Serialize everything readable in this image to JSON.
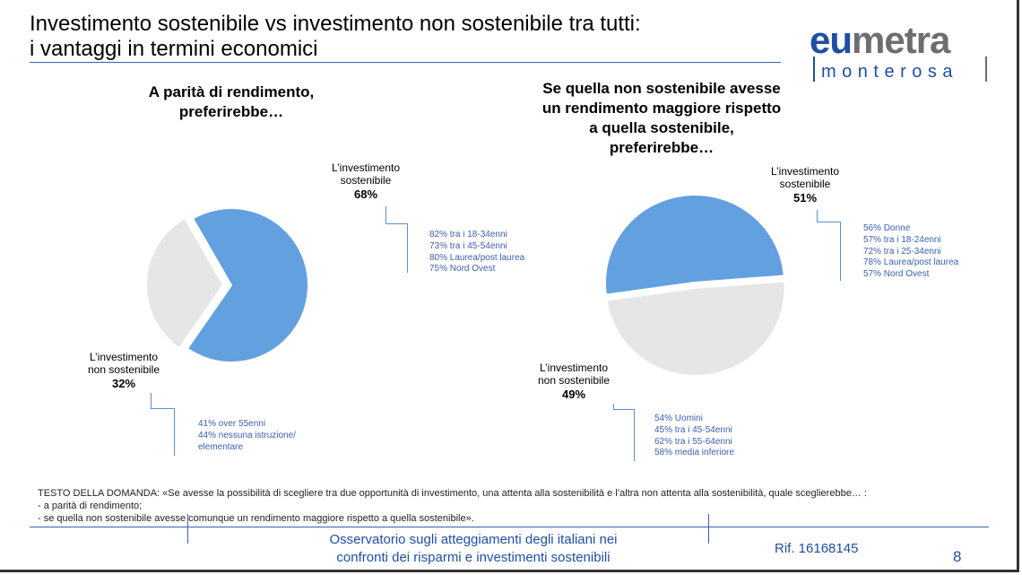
{
  "slide": {
    "title_line1": "Investimento sostenibile vs investimento non sostenibile tra tutti:",
    "title_line2": "i vantaggi in termini economici"
  },
  "logo": {
    "part1": "eu",
    "part2": "metra",
    "subtitle": "monterosa",
    "colors": {
      "blue": "#1f4fa3",
      "grey": "#6e6e6e"
    }
  },
  "chart_data": [
    {
      "type": "pie",
      "title_line1": "A parità di rendimento,",
      "title_line2": "preferirebbe…",
      "slices": [
        {
          "label_line1": "L’investimento",
          "label_line2": "sostenibile",
          "value": 68,
          "value_label": "68%",
          "color": "#62a0e0",
          "notes": [
            "82% tra i 18-34enni",
            "73% tra i 45-54enni",
            "80% Laurea/post laurea",
            "75% Nord Ovest"
          ]
        },
        {
          "label_line1": "L’investimento",
          "label_line2": "non sostenibile",
          "value": 32,
          "value_label": "32%",
          "color": "#e6e6e6",
          "notes": [
            "41% over 55enni",
            "44% nessuna istruzione/",
            "elementare"
          ]
        }
      ]
    },
    {
      "type": "pie",
      "title_line1": "Se quella non sostenibile avesse",
      "title_line2": "un rendimento maggiore rispetto",
      "title_line3": "a quella  sostenibile,",
      "title_line4": "preferirebbe…",
      "slices": [
        {
          "label_line1": "L’investimento",
          "label_line2": "sostenibile",
          "value": 51,
          "value_label": "51%",
          "color": "#62a0e0",
          "notes": [
            "56%  Donne",
            "57% tra i 18-24enni",
            "72% tra i 25-34enni",
            "78% Laurea/post laurea",
            "57% Nord Ovest"
          ]
        },
        {
          "label_line1": "L’investimento",
          "label_line2": "non sostenibile",
          "value": 49,
          "value_label": "49%",
          "color": "#e6e6e6",
          "notes": [
            "54% Uomini",
            "45% tra i 45-54enni",
            "62% tra i 55-64enni",
            "58% media inferiore"
          ]
        }
      ]
    }
  ],
  "question": {
    "line1": "TESTO DELLA DOMANDA: «Se avesse la possibilità di scegliere tra due opportunità di investimento, una attenta alla sostenibilità e l’altra non attenta alla sostenibilità, quale sceglierebbe… :",
    "line2": " - a parità di rendimento;",
    "line3": "- se quella non sostenibile avesse comunque un rendimento maggiore rispetto a quella  sostenibile»."
  },
  "footer": {
    "line1": "Osservatorio sugli atteggiamenti degli italiani nei",
    "line2": "confronti dei risparmi e investimenti sostenibili",
    "ref": "Rif. 16168145",
    "page": "8"
  }
}
